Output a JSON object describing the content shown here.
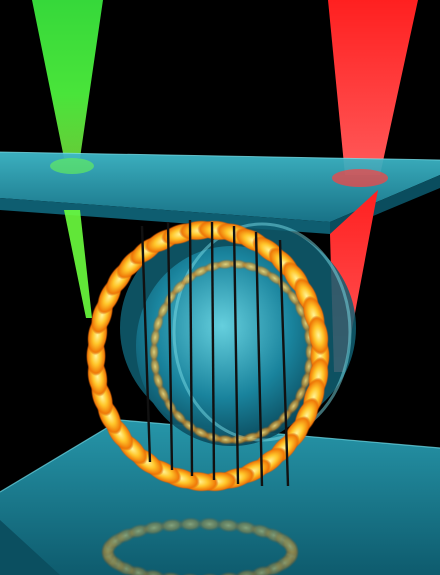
{
  "scene": {
    "description_visible_text": "",
    "lasers": [
      {
        "name": "green",
        "color": "#3fe23a"
      },
      {
        "name": "red",
        "color": "#ff1a1a"
      }
    ],
    "ring_emission_color": "#ffb21a",
    "ring_core_color": "#fff38a",
    "glass_color": "#1f8fa6",
    "background_color": "#000000",
    "lobe_count": 38,
    "fiber_count": 7
  }
}
